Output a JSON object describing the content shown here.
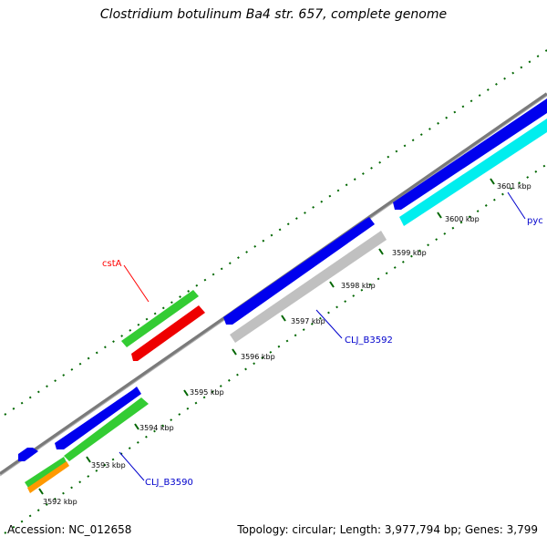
{
  "title": "Clostridium botulinum Ba4 str. 657, complete genome",
  "footer": {
    "accession": "Accession: NC_012658",
    "summary": "Topology: circular; Length: 3,977,794 bp; Genes: 3,799"
  },
  "ticks": [
    {
      "label": "3592 kbp"
    },
    {
      "label": "3593 kbp"
    },
    {
      "label": "3594 kbp"
    },
    {
      "label": "3595 kbp"
    },
    {
      "label": "3596 kbp"
    },
    {
      "label": "3597 kbp"
    },
    {
      "label": "3598 kbp"
    },
    {
      "label": "3599 kbp"
    },
    {
      "label": "3600 kbp"
    },
    {
      "label": "3601 kbp"
    }
  ],
  "gene_labels": [
    {
      "text": "cstA",
      "color": "#ff0000"
    },
    {
      "text": "CLJ_B3592",
      "color": "#0000cc"
    },
    {
      "text": "CLJ_B3590",
      "color": "#0000cc"
    },
    {
      "text": "pyc",
      "color": "#0000cc"
    }
  ],
  "colors": {
    "backbone": "#808080",
    "forward_cds": "#0000ee",
    "green_cds": "#33cc33",
    "red_cds": "#ee0000",
    "gray_cds": "#c0c0c0",
    "cyan_cds": "#00eeee",
    "orange_cds": "#ff9900",
    "tick_marks": "#006600"
  }
}
